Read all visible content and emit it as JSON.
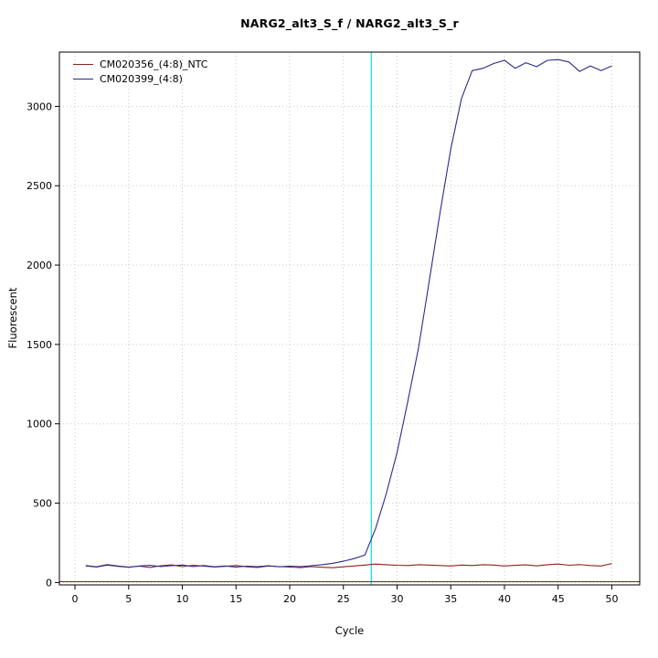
{
  "chart_data": {
    "type": "line",
    "title": "NARG2_alt3_S_f / NARG2_alt3_S_r",
    "xlabel": "Cycle",
    "ylabel": "Fluorescent",
    "xlim": [
      -1.45,
      52.6
    ],
    "ylim": [
      -15,
      3342
    ],
    "xticks": [
      0,
      5,
      10,
      15,
      20,
      25,
      30,
      35,
      40,
      45,
      50
    ],
    "yticks": [
      0,
      500,
      1000,
      1500,
      2000,
      2500,
      3000
    ],
    "grid": "dotted",
    "legend_position": "top-left",
    "x_start": 1,
    "ct_line_x": 27.6,
    "threshold_y": 5,
    "colors": {
      "grid": "#c8c8c8",
      "ct_line": "#00e0e8",
      "axis": "#000000",
      "background": "#ffffff"
    },
    "series": [
      {
        "name": "CM020356_(4:8)_NTC",
        "color": "#8b2222",
        "values": [
          107,
          99,
          113,
          104,
          97,
          103,
          95,
          106,
          111,
          100,
          109,
          103,
          97,
          102,
          107,
          99,
          95,
          104,
          100,
          97,
          94,
          100,
          96,
          93,
          99,
          104,
          110,
          116,
          112,
          109,
          107,
          112,
          110,
          107,
          104,
          110,
          107,
          112,
          110,
          104,
          108,
          111,
          105,
          112,
          116,
          109,
          113,
          107,
          104,
          120
        ]
      },
      {
        "name": "CM020399_(4:8)",
        "color": "#2a2a8d",
        "values": [
          105,
          98,
          110,
          102,
          96,
          104,
          108,
          100,
          106,
          110,
          101,
          107,
          99,
          104,
          97,
          103,
          100,
          106,
          99,
          103,
          100,
          106,
          112,
          121,
          134,
          151,
          173,
          340,
          560,
          820,
          1140,
          1480,
          1900,
          2330,
          2730,
          3050,
          3225,
          3240,
          3270,
          3290,
          3240,
          3275,
          3250,
          3290,
          3295,
          3280,
          3220,
          3255,
          3225,
          3255
        ]
      }
    ]
  }
}
